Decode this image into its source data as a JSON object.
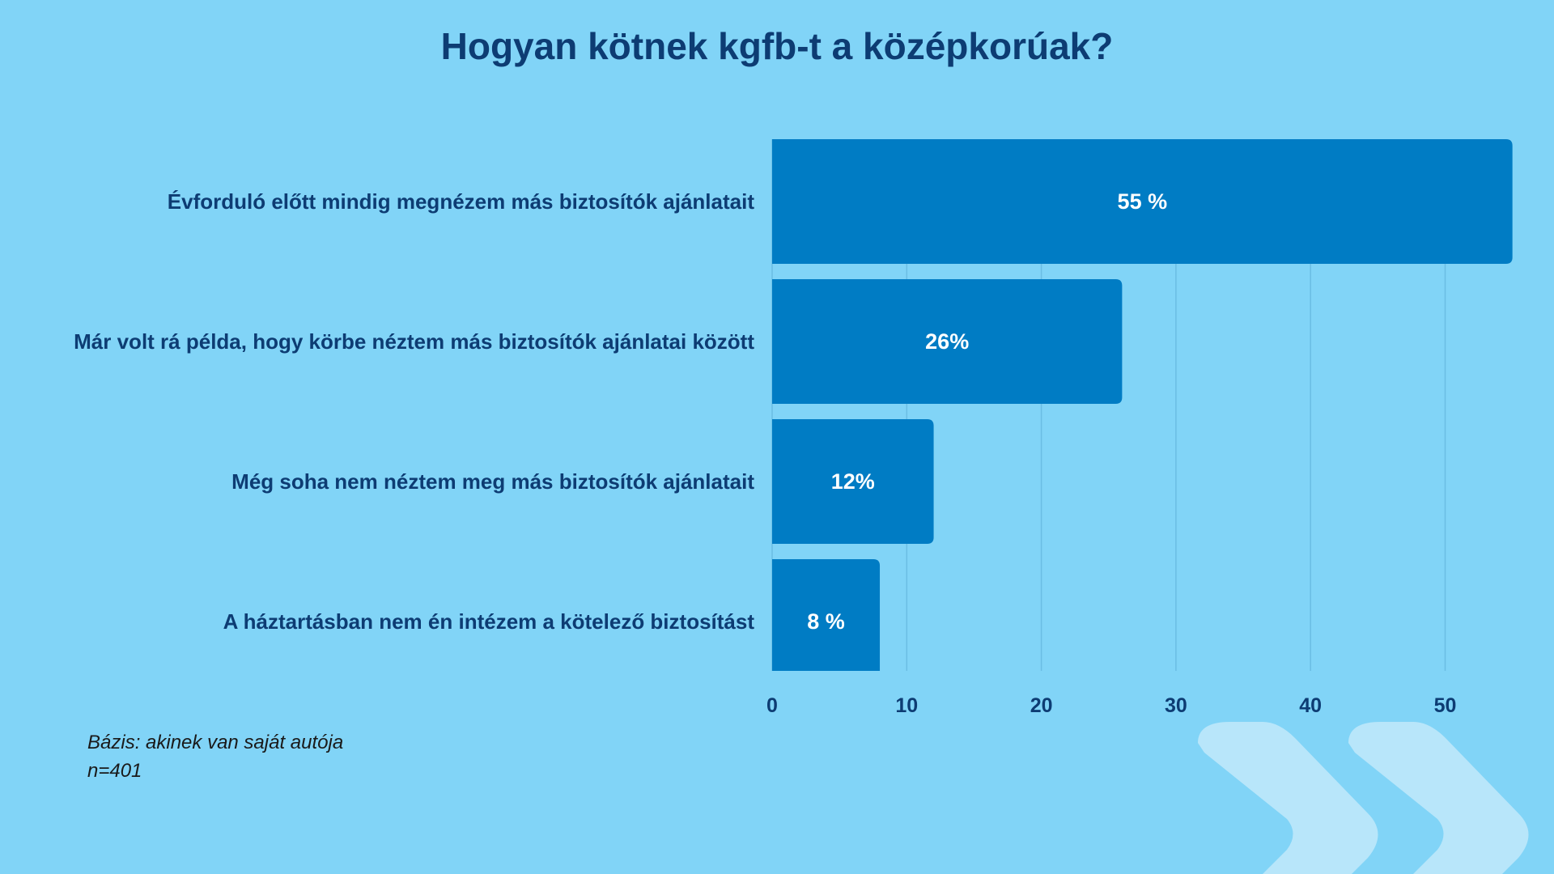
{
  "chart_data": {
    "type": "bar",
    "orientation": "horizontal",
    "title": "Hogyan kötnek kgfb-t a középkorúak?",
    "categories": [
      "Évforduló előtt mindig megnézem más biztosítók ajánlatait",
      "Már volt rá példa, hogy körbe néztem más biztosítók ajánlatai között",
      "Még soha nem néztem meg más biztosítók ajánlatait",
      "A háztartásban nem én intézem a kötelező biztosítást"
    ],
    "values": [
      55,
      26,
      12,
      8
    ],
    "value_labels": [
      "55 %",
      "26%",
      "12%",
      "8 %"
    ],
    "xticks": [
      0,
      10,
      20,
      30,
      40,
      50
    ],
    "xlim": [
      0,
      57
    ],
    "grid": true,
    "legend": "none"
  },
  "footnotes": {
    "base": "Bázis: akinek van saját autója",
    "n": "n=401"
  },
  "colors": {
    "background": "#81d4f7",
    "bar": "#007cc4",
    "title": "#0d3c73",
    "category_label": "#0d3c73",
    "value_label": "#ffffff",
    "grid": "#6bbde4",
    "chevron": "#b8e6fa"
  }
}
